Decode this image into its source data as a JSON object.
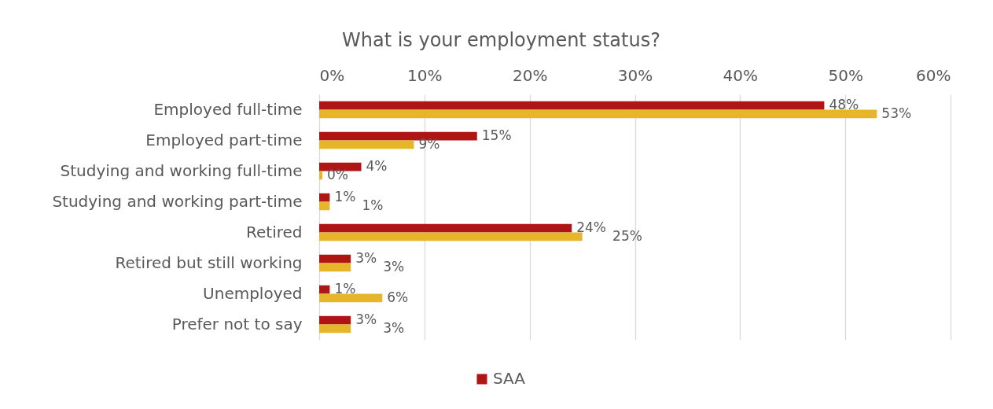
{
  "chart_data": {
    "type": "bar",
    "orientation": "horizontal",
    "title": "What is your employment status?",
    "categories": [
      "Employed full-time",
      "Employed part-time",
      "Studying and working full-time",
      "Studying and working part-time",
      "Retired",
      "Retired but still working",
      "Unemployed",
      "Prefer not to say"
    ],
    "series": [
      {
        "name": "SAA",
        "color": "#b01515",
        "values": [
          48,
          15,
          4,
          1,
          24,
          3,
          1,
          3
        ],
        "value_labels": [
          "48%",
          "15%",
          "4%",
          "1%",
          "24%",
          "3%",
          "1%",
          "3%"
        ]
      },
      {
        "color": "#e6b52a",
        "values": [
          53,
          9,
          0.3,
          1,
          25,
          3,
          6,
          3
        ],
        "value_labels": [
          "53%",
          "9%",
          "0%",
          "1%",
          "25%",
          "3%",
          "6%",
          "3%"
        ]
      }
    ],
    "xlim": [
      0,
      60
    ],
    "xticks": [
      {
        "value": 0,
        "label": "0%"
      },
      {
        "value": 10,
        "label": "10%"
      },
      {
        "value": 20,
        "label": "20%"
      },
      {
        "value": 30,
        "label": "30%"
      },
      {
        "value": 40,
        "label": "40%"
      },
      {
        "value": 50,
        "label": "50%"
      },
      {
        "value": 60,
        "label": "60%"
      }
    ],
    "grid": "x",
    "legend": "bottom"
  }
}
